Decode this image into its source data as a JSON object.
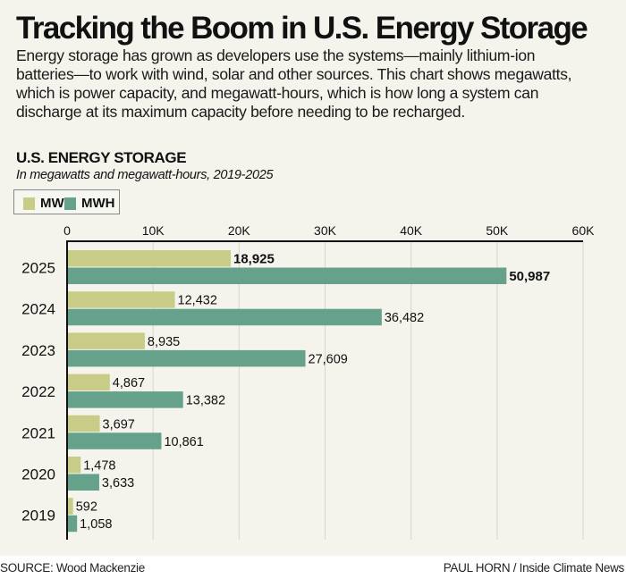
{
  "header": {
    "title": "Tracking the Boom in U.S. Energy Storage",
    "description": "Energy storage has grown as developers use the systems—mainly lithium-ion batteries—to work with wind, solar and other sources. This chart shows megawatts, which is power capacity, and megawatt-hours, which is how long a system can discharge at its maximum capacity before needing to be recharged."
  },
  "footer": {
    "source": "SOURCE: Wood Mackenzie",
    "credit": "PAUL HORN / Inside Climate News"
  },
  "colors": {
    "mw": "#c8cc86",
    "mwh": "#65a18b",
    "panel": "#f4f3ec",
    "grid": "#d6d6d0"
  },
  "chart_data": {
    "type": "bar",
    "orientation": "horizontal",
    "title": "U.S. ENERGY STORAGE",
    "subtitle": "In megawatts and megawatt-hours, 2019-2025",
    "xlabel": "",
    "ylabel": "",
    "xlim": [
      0,
      60000
    ],
    "x_ticks": [
      0,
      10000,
      20000,
      30000,
      40000,
      50000,
      60000
    ],
    "x_tick_labels": [
      "0",
      "10K",
      "20K",
      "30K",
      "40K",
      "50K",
      "60K"
    ],
    "axis_position": "top",
    "grid": true,
    "legend_position": "top-left",
    "categories": [
      "2025",
      "2024",
      "2023",
      "2022",
      "2021",
      "2020",
      "2019"
    ],
    "series": [
      {
        "name": "MW",
        "color": "#c8cc86",
        "values": [
          18925,
          12432,
          8935,
          4867,
          3697,
          1478,
          592
        ],
        "labels": [
          "18,925",
          "12,432",
          "8,935",
          "4,867",
          "3,697",
          "1,478",
          "592"
        ]
      },
      {
        "name": "MWH",
        "color": "#65a18b",
        "values": [
          50987,
          36482,
          27609,
          13382,
          10861,
          3633,
          1058
        ],
        "labels": [
          "50,987",
          "36,482",
          "27,609",
          "13,382",
          "10,861",
          "3,633",
          "1,058"
        ]
      }
    ],
    "bold_labels_for_category": "2025"
  }
}
